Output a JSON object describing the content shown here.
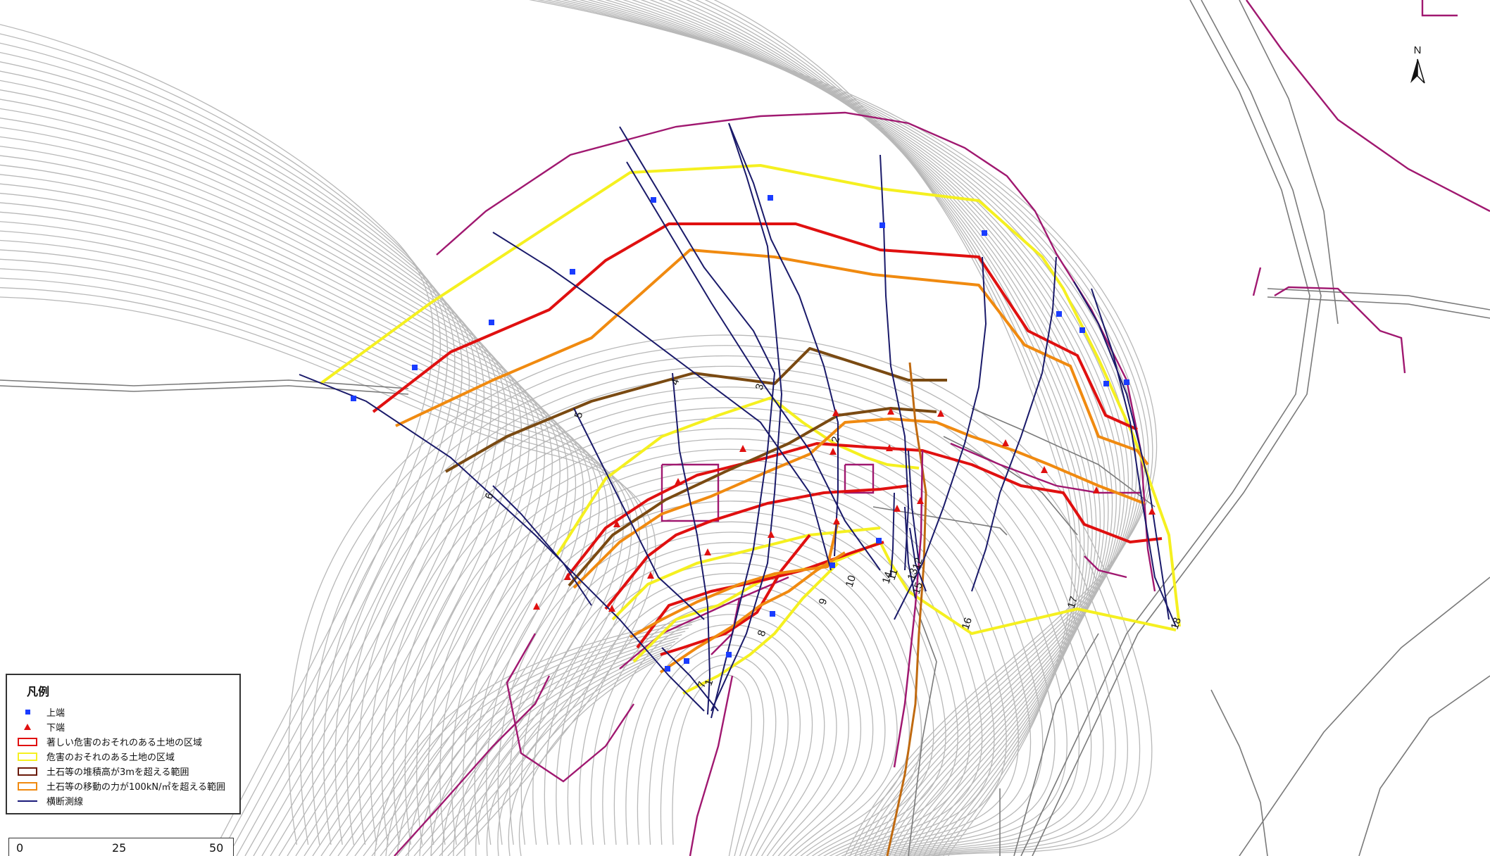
{
  "map": {
    "north_label": "N",
    "section_labels": [
      "1",
      "2",
      "3",
      "4",
      "5",
      "6",
      "7",
      "8",
      "9",
      "10",
      "11",
      "12",
      "13",
      "14",
      "15",
      "16",
      "17",
      "18"
    ]
  },
  "legend": {
    "title": "凡例",
    "items": [
      {
        "label": "上端",
        "symbol": "square",
        "color": "#1a3cff"
      },
      {
        "label": "下端",
        "symbol": "triangle",
        "color": "#e01010"
      },
      {
        "label": "著しい危害のおそれのある土地の区域",
        "symbol": "rect",
        "color": "#e01010"
      },
      {
        "label": "危害のおそれのある土地の区域",
        "symbol": "rect",
        "color": "#f5f020"
      },
      {
        "label": "土石等の堆積高が3mを超える範囲",
        "symbol": "rect",
        "color": "#6a1a0a"
      },
      {
        "label": "土石等の移動の力が100kN/㎡を超える範囲",
        "symbol": "rect",
        "color": "#f08a10"
      },
      {
        "label": "横断測線",
        "symbol": "line",
        "color": "#1a1a7a"
      }
    ]
  },
  "scalebar": {
    "ticks": [
      "0",
      "25",
      "50"
    ]
  },
  "colors": {
    "contour": "#b8b8b8",
    "road": "#7a7a7a",
    "boundary": "#a01870",
    "red_zone": "#e01010",
    "yellow_zone": "#f5f020",
    "deposit_zone": "#7a4a12",
    "orange_zone": "#f08a10",
    "section_line": "#1a1a6a",
    "stream": "#c06a10",
    "upper_marker": "#1a3cff",
    "lower_marker": "#e01010"
  }
}
